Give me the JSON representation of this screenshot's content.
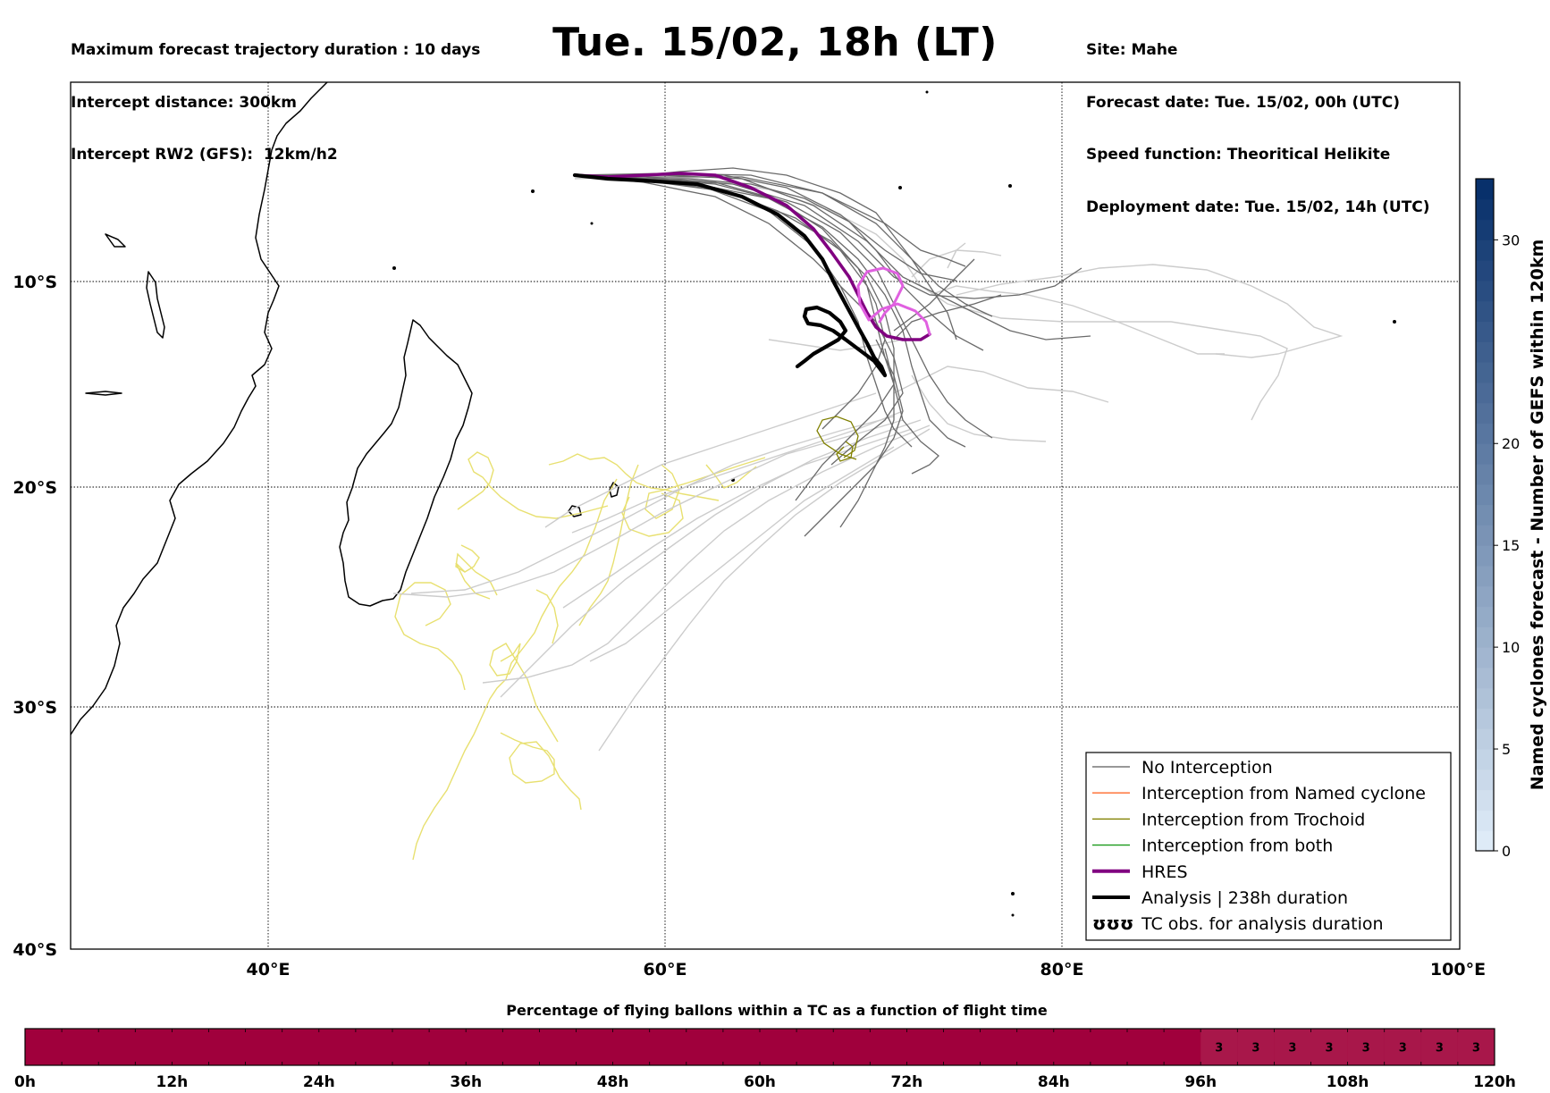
{
  "header_left": [
    "Maximum forecast trajectory duration : 10 days",
    "Intercept distance: 300km",
    "Intercept RW2 (GFS):  12km/h2"
  ],
  "header_right": [
    "Site: Mahe",
    "Forecast date: Tue. 15/02, 00h (UTC)",
    "Speed function: Theoritical Helikite",
    "Deployment date: Tue. 15/02, 14h (UTC)"
  ],
  "title": "Tue. 15/02, 18h (LT)",
  "map": {
    "lat_labels": [
      "10°S",
      "20°S",
      "30°S",
      "40°S"
    ],
    "lon_labels": [
      "40°E",
      "60°E",
      "80°E",
      "100°E"
    ]
  },
  "legend": [
    {
      "label": "No Interception",
      "color": "#777777",
      "style": "thin"
    },
    {
      "label": "Interception from Named cyclone",
      "color": "#ff6a2a",
      "style": "thin"
    },
    {
      "label": "Interception from Trochoid",
      "color": "#808000",
      "style": "thin"
    },
    {
      "label": "Interception from both",
      "color": "#1a9a1a",
      "style": "thin"
    },
    {
      "label": "HRES",
      "color": "#800080",
      "style": "thick"
    },
    {
      "label": "Analysis | 238h duration",
      "color": "#000000",
      "style": "thick"
    },
    {
      "label": "TC obs. for analysis duration",
      "color": "#000000",
      "style": "symbol",
      "symbol": "ʊʊʊ"
    }
  ],
  "colorbar_right": {
    "label": "Named cyclones forecast - Number of GEFS within 120km",
    "ticks": [
      "0",
      "5",
      "10",
      "15",
      "20",
      "30"
    ]
  },
  "colorbar_bottom": {
    "title": "Percentage of flying ballons within a TC as a function of flight time",
    "ticks": [
      "0h",
      "12h",
      "24h",
      "36h",
      "48h",
      "60h",
      "72h",
      "84h",
      "96h",
      "108h",
      "120h"
    ],
    "cell_values": [
      "3",
      "3",
      "3",
      "3",
      "3",
      "3",
      "3",
      "3"
    ]
  },
  "colors": {
    "no_interception": "#777777",
    "hres": "#800080",
    "hres_tail": "#e060e0",
    "analysis": "#000000",
    "tc_obs": "#e8e070",
    "trochoid": "#808000",
    "bar_main": "#a0003c",
    "bar_cells": "#a8174a"
  }
}
